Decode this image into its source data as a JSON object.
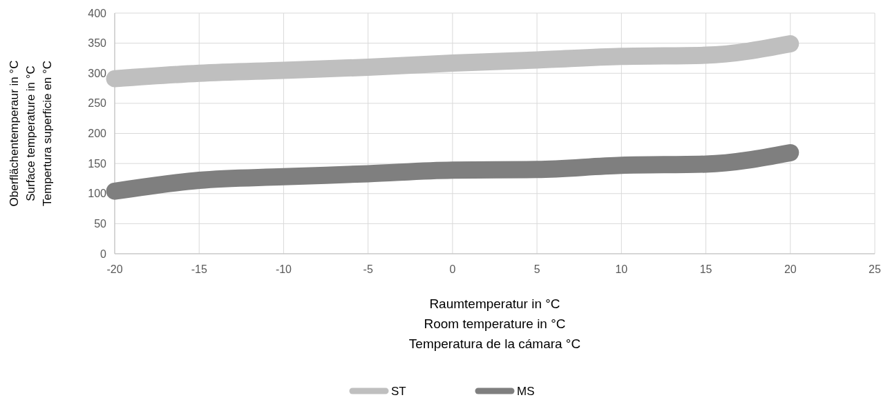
{
  "chart_data": {
    "type": "line",
    "xlabel": "Raumtemperatur in °C\nRoom temperature in °C\nTemperatura de la cámara °C",
    "ylabel": "Oberflächentemperaur in °C\nSurface temperature in °C\nTempertura superficie en °C",
    "x": [
      -20,
      -15,
      -10,
      -5,
      0,
      5,
      10,
      15,
      20
    ],
    "series": [
      {
        "name": "ST",
        "color": "#bfbfbf",
        "values": [
          291,
          300,
          305,
          310,
          317,
          322,
          328,
          330,
          349
        ]
      },
      {
        "name": "MS",
        "color": "#7f7f7f",
        "values": [
          104,
          122,
          128,
          133,
          139,
          140,
          147,
          149,
          168
        ]
      }
    ],
    "xlim": [
      -20,
      25
    ],
    "xticks": [
      -20,
      -15,
      -10,
      -5,
      0,
      5,
      10,
      15,
      20,
      25
    ],
    "ylim": [
      0,
      400
    ],
    "yticks": [
      0,
      50,
      100,
      150,
      200,
      250,
      300,
      350,
      400
    ],
    "grid": true,
    "legend": "bottom",
    "line_style": "solid"
  }
}
